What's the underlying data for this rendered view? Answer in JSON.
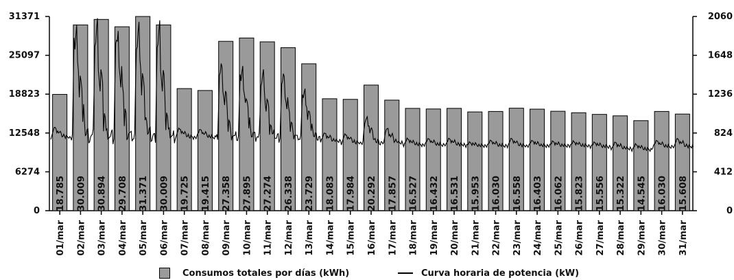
{
  "chart_data": {
    "type": "bar",
    "categories": [
      "01/mar",
      "02/mar",
      "03/mar",
      "04/mar",
      "05/mar",
      "06/mar",
      "07/mar",
      "08/mar",
      "09/mar",
      "10/mar",
      "11/mar",
      "12/mar",
      "13/mar",
      "14/mar",
      "15/mar",
      "16/mar",
      "17/mar",
      "18/mar",
      "19/mar",
      "20/mar",
      "21/mar",
      "22/mar",
      "23/mar",
      "24/mar",
      "25/mar",
      "26/mar",
      "27/mar",
      "28/mar",
      "29/mar",
      "30/mar",
      "31/mar"
    ],
    "series": [
      {
        "name": "Consumos totales por días (kWh)",
        "axis": "left",
        "values": [
          18785,
          30009,
          30894,
          29708,
          31371,
          30009,
          19725,
          19415,
          27358,
          27895,
          27274,
          26338,
          23729,
          18083,
          17984,
          20292,
          17857,
          16527,
          16432,
          16531,
          15953,
          16030,
          16558,
          16403,
          16062,
          15823,
          15556,
          15322,
          14545,
          16030,
          15608
        ],
        "labels": [
          "18.785",
          "30.009",
          "30.894",
          "29.708",
          "31.371",
          "30.009",
          "19.725",
          "19.415",
          "27.358",
          "27.895",
          "27.274",
          "26.338",
          "23.729",
          "18.083",
          "17.984",
          "20.292",
          "17.857",
          "16.527",
          "16.432",
          "16.531",
          "15.953",
          "16.030",
          "16.558",
          "16.403",
          "16.062",
          "15.823",
          "15.556",
          "15.322",
          "14.545",
          "16.030",
          "15.608"
        ]
      },
      {
        "name": "Curva horaria de potencia (kW)",
        "axis": "right",
        "type": "line",
        "daily_base": [
          780,
          780,
          780,
          780,
          780,
          780,
          780,
          780,
          780,
          780,
          780,
          780,
          780,
          740,
          720,
          720,
          720,
          700,
          700,
          700,
          690,
          690,
          690,
          690,
          690,
          690,
          680,
          660,
          650,
          680,
          680
        ],
        "daily_peak": [
          880,
          1975,
          1990,
          1955,
          1995,
          1955,
          870,
          860,
          1580,
          1550,
          1480,
          1460,
          1300,
          820,
          810,
          1000,
          870,
          760,
          760,
          760,
          720,
          740,
          760,
          740,
          730,
          730,
          720,
          720,
          700,
          740,
          760
        ]
      }
    ],
    "y_left": {
      "ylim": [
        0,
        31371
      ],
      "ticks": [
        "0",
        "6274",
        "12548",
        "18823",
        "25097",
        "31371"
      ]
    },
    "y_right": {
      "ylim": [
        0,
        2060
      ],
      "ticks": [
        "0",
        "412",
        "824",
        "1236",
        "1648",
        "2060"
      ]
    },
    "colors": {
      "bar": "#9a9a9a",
      "bar_stroke": "#000000",
      "line": "#000000"
    },
    "legend": {
      "position": "bottom"
    },
    "grid": false
  },
  "legend": {
    "bars_label": "Consumos totales por días (kWh)",
    "line_label": "Curva horaria de potencia (kW)"
  }
}
